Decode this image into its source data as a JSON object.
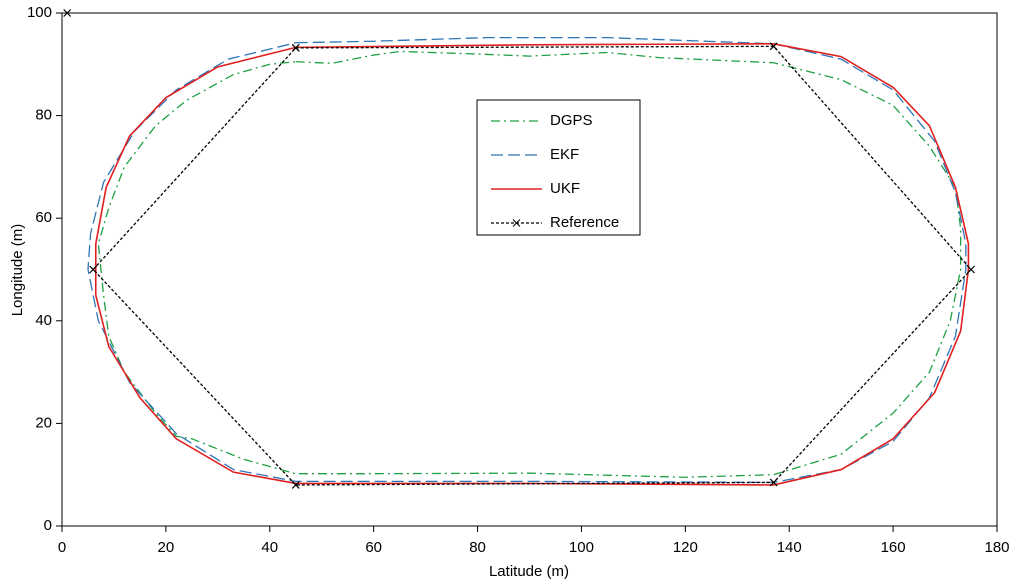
{
  "chart_data": {
    "type": "line",
    "x_label": "Latitude (m)",
    "y_label": "Longitude (m)",
    "xlim": [
      0,
      180
    ],
    "ylim": [
      0,
      100
    ],
    "xticks": [
      0,
      20,
      40,
      60,
      80,
      100,
      120,
      140,
      160,
      180
    ],
    "yticks": [
      0,
      20,
      40,
      60,
      80,
      100
    ],
    "grid": false,
    "legend": "center",
    "series": [
      {
        "name": "DGPS",
        "color": "#1fa045",
        "dash": "dashdot",
        "x": [
          45,
          52,
          60,
          65,
          80,
          90,
          105,
          115,
          137,
          150,
          160,
          167,
          172,
          173,
          173,
          171,
          167,
          160,
          150,
          137,
          120,
          90,
          60,
          45,
          35,
          25,
          22,
          18,
          12,
          9,
          8,
          7,
          9,
          12,
          18,
          24,
          33,
          40,
          45
        ],
        "values": [
          90.5,
          90.2,
          91.8,
          92.5,
          92,
          91.6,
          92.3,
          91.3,
          90.3,
          87,
          82,
          74,
          66,
          58,
          50,
          40,
          30,
          22,
          14,
          10,
          9.5,
          10.3,
          10.2,
          10.2,
          13,
          17,
          17.5,
          22,
          30,
          37,
          45,
          55,
          62,
          70,
          78,
          83,
          88,
          90,
          90.5
        ]
      },
      {
        "name": "EKF",
        "color": "#2e75b6",
        "dash": "longdash",
        "x": [
          45,
          60,
          82,
          105,
          137,
          150,
          160,
          168,
          172,
          174,
          174,
          172,
          167,
          160,
          150,
          137,
          90,
          45,
          33,
          22,
          13,
          7,
          5,
          5.5,
          8,
          14,
          22,
          32,
          45
        ],
        "values": [
          94.2,
          94.5,
          95.2,
          95.2,
          94,
          91,
          85,
          75,
          65,
          55,
          50,
          37,
          25,
          16.5,
          11,
          8.5,
          8.7,
          8.7,
          11,
          18,
          28,
          40,
          50,
          57,
          67,
          77,
          85,
          91,
          94.2
        ]
      },
      {
        "name": "UKF",
        "color": "#e02020",
        "dash": "solid",
        "x": [
          45,
          90,
          137,
          150,
          160,
          167,
          172,
          174.5,
          174.5,
          173,
          168,
          160,
          150,
          137,
          90,
          45,
          33,
          22,
          15,
          9,
          6.5,
          6.5,
          8.5,
          13,
          20,
          30,
          45
        ],
        "values": [
          93.3,
          93.8,
          94,
          91.5,
          85.5,
          78,
          66,
          55,
          50,
          38,
          26,
          17,
          11,
          8,
          8.3,
          8.3,
          10.5,
          17,
          25,
          35,
          45,
          55,
          66,
          76,
          83.5,
          89.5,
          93.3
        ]
      },
      {
        "name": "Reference",
        "color": "#000000",
        "dash": "dotted",
        "marker": "x",
        "x": [
          45,
          137,
          175,
          137,
          45,
          6,
          45,
          null,
          1
        ],
        "values": [
          93.2,
          93.5,
          50,
          8.5,
          8,
          50,
          93.2,
          null,
          100
        ]
      }
    ]
  }
}
